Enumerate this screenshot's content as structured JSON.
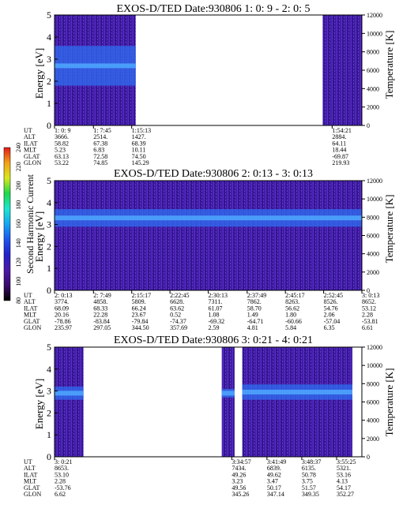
{
  "chart_data": [
    {
      "type": "heatmap",
      "title": "EXOS-D/TED   Date:930806  1: 0: 9 - 2: 0: 5",
      "ylabel": "Energy [eV]",
      "ylim": [
        0,
        5
      ],
      "y_ticks": [
        "0",
        "1",
        "2",
        "3",
        "4",
        "5"
      ],
      "y2label": "Temperature [K]",
      "y2lim": [
        0,
        12000
      ],
      "y2_ticks": [
        "0",
        "2000",
        "4000",
        "6000",
        "8000",
        "10000",
        "12000"
      ],
      "info_rows": [
        {
          "label": "UT",
          "values": [
            "1: 0: 9",
            "1: 7:45",
            "1:15:13",
            "1:54:21"
          ]
        },
        {
          "label": "ALT",
          "values": [
            "3666.",
            "2514.",
            "1427.",
            "2884."
          ]
        },
        {
          "label": "ILAT",
          "values": [
            "58.82",
            "67.38",
            "68.39",
            "64.11"
          ]
        },
        {
          "label": "MLT",
          "values": [
            "5.23",
            "6.83",
            "10.11",
            "18.44"
          ]
        },
        {
          "label": "GLAT",
          "values": [
            "63.13",
            "72.58",
            "74.50",
            "-69.87"
          ]
        },
        {
          "label": "GLON",
          "values": [
            "53.22",
            "74.85",
            "145.29",
            "219.93"
          ]
        }
      ],
      "data_segments": [
        {
          "from": "1: 0: 9",
          "to": "1:16:00",
          "band_ev": [
            1.8,
            3.6
          ]
        },
        {
          "from": "1:52:30",
          "to": "2: 0: 5",
          "band_ev": null
        }
      ]
    },
    {
      "type": "heatmap",
      "title": "EXOS-D/TED   Date:930806  2: 0:13 - 3: 0:13",
      "ylabel": "Energy [eV]",
      "ylim": [
        0,
        5
      ],
      "y_ticks": [
        "0",
        "1",
        "2",
        "3",
        "4",
        "5"
      ],
      "y2label": "Temperature [K]",
      "y2lim": [
        0,
        12000
      ],
      "y2_ticks": [
        "0",
        "2000",
        "4000",
        "6000",
        "8000",
        "10000",
        "12000"
      ],
      "info_rows": [
        {
          "label": "UT",
          "values": [
            "2: 0:13",
            "2: 7:49",
            "2:15:17",
            "2:22:45",
            "2:30:13",
            "2:37:49",
            "2:45:17",
            "2:52:45",
            "3: 0:13"
          ]
        },
        {
          "label": "ALT",
          "values": [
            "3774.",
            "4858.",
            "5809.",
            "6628.",
            "7311.",
            "7862.",
            "8263.",
            "8526.",
            "8652."
          ]
        },
        {
          "label": "ILAT",
          "values": [
            "68.09",
            "68.33",
            "66.24",
            "63.62",
            "61.07",
            "58.70",
            "56.62",
            "54.76",
            "53.12"
          ]
        },
        {
          "label": "MLT",
          "values": [
            "20.16",
            "22.28",
            "23.67",
            "0.52",
            "1.08",
            "1.49",
            "1.80",
            "2.06",
            "2.28"
          ]
        },
        {
          "label": "GLAT",
          "values": [
            "-78.86",
            "-83.84",
            "-79.84",
            "-74.37",
            "-69.32",
            "-64.71",
            "-60.66",
            "-57.04",
            "-53.81"
          ]
        },
        {
          "label": "GLON",
          "values": [
            "235.97",
            "297.05",
            "344.50",
            "357.69",
            "2.59",
            "4.81",
            "5.84",
            "6.35",
            "6.61"
          ]
        }
      ],
      "data_segments": [
        {
          "from": "2: 0:13",
          "to": "3: 0:13",
          "band_ev": [
            2.9,
            3.7
          ]
        }
      ]
    },
    {
      "type": "heatmap",
      "title": "EXOS-D/TED   Date:930806  3: 0:21 - 4: 0:21",
      "ylabel": "Energy [eV]",
      "ylim": [
        0,
        5
      ],
      "y_ticks": [
        "0",
        "1",
        "2",
        "3",
        "4",
        "5"
      ],
      "y2label": "Temperature [K]",
      "y2lim": [
        0,
        12000
      ],
      "y2_ticks": [
        "0",
        "2000",
        "4000",
        "6000",
        "8000",
        "10000",
        "12000"
      ],
      "info_rows": [
        {
          "label": "UT",
          "values": [
            "3: 0:21",
            "3:34:57",
            "3:41:49",
            "3:48:37",
            "3:55:25"
          ]
        },
        {
          "label": "ALT",
          "values": [
            "8653.",
            "7434.",
            "6839.",
            "6135.",
            "5321."
          ]
        },
        {
          "label": "ILAT",
          "values": [
            "53.10",
            "49.26",
            "49.62",
            "50.78",
            "53.16"
          ]
        },
        {
          "label": "MLT",
          "values": [
            "2.28",
            "3.23",
            "3.47",
            "3.75",
            "4.13"
          ]
        },
        {
          "label": "GLAT",
          "values": [
            "-53.76",
            "49.56",
            "50.17",
            "51.57",
            "54.17"
          ]
        },
        {
          "label": "GLON",
          "values": [
            "6.62",
            "345.26",
            "347.14",
            "349.35",
            "352.27"
          ]
        }
      ],
      "data_segments": [
        {
          "from": "3: 0:21",
          "to": "3: 6:00",
          "band_ev": [
            2.6,
            3.2
          ]
        },
        {
          "from": "3:33:00",
          "to": "3:35:30",
          "band_ev": [
            2.7,
            3.1
          ]
        },
        {
          "from": "3:37:00",
          "to": "3:58:30",
          "band_ev": [
            2.6,
            3.3
          ]
        }
      ]
    }
  ],
  "colorbar": {
    "label": "Second Harmonic Current",
    "ticks": [
      "80",
      "100",
      "120",
      "140",
      "160",
      "180",
      "200",
      "220",
      "240"
    ],
    "colors": [
      "#000000",
      "#3a0a6e",
      "#4b1aa8",
      "#2222c8",
      "#1f55ee",
      "#16a6f2",
      "#1ee6d0",
      "#1ed84a",
      "#d8e81e",
      "#f2a21a",
      "#e21a1a"
    ]
  }
}
